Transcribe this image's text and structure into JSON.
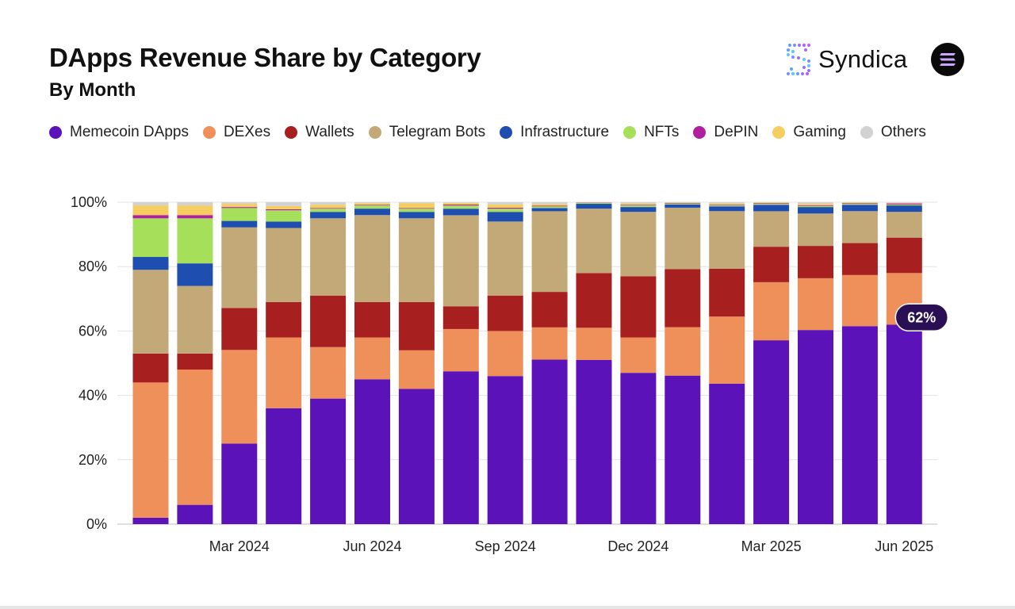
{
  "header": {
    "title": "DApps Revenue Share by Category",
    "subtitle": "By Month"
  },
  "brand": {
    "name": "Syndica",
    "logo_icon": "syndica-dots-icon",
    "partner_icon": "solana-logo-icon"
  },
  "chart_data": {
    "type": "bar",
    "stacked": true,
    "title": "DApps Revenue Share by Category",
    "subtitle": "By Month",
    "xlabel": "",
    "ylabel": "",
    "ylim": [
      0,
      100
    ],
    "yticks": [
      "0%",
      "20%",
      "40%",
      "60%",
      "80%",
      "100%"
    ],
    "yticks_values": [
      0,
      20,
      40,
      60,
      80,
      100
    ],
    "grid": true,
    "legend_position": "top",
    "categories": [
      "Jan 2024",
      "Feb 2024",
      "Mar 2024",
      "Apr 2024",
      "May 2024",
      "Jun 2024",
      "Jul 2024",
      "Aug 2024",
      "Sep 2024",
      "Oct 2024",
      "Nov 2024",
      "Dec 2024",
      "Jan 2025",
      "Feb 2025",
      "Mar 2025",
      "Apr 2025",
      "May 2025",
      "Jun 2025"
    ],
    "x_tick_labels": [
      {
        "index": 2,
        "label": "Mar 2024"
      },
      {
        "index": 5,
        "label": "Jun 2024"
      },
      {
        "index": 8,
        "label": "Sep 2024"
      },
      {
        "index": 11,
        "label": "Dec 2024"
      },
      {
        "index": 14,
        "label": "Mar 2025"
      },
      {
        "index": 17,
        "label": "Jun 2025"
      }
    ],
    "series": [
      {
        "name": "Memecoin DApps",
        "color": "#5b12b8",
        "values": [
          2,
          6,
          25,
          36,
          39,
          45,
          42,
          47,
          46,
          51,
          51,
          47,
          46,
          44,
          57,
          60,
          62,
          62
        ]
      },
      {
        "name": "DEXes",
        "color": "#ef8f5a",
        "values": [
          42,
          42,
          29,
          22,
          16,
          13,
          12,
          13,
          14,
          10,
          10,
          11,
          15,
          21,
          18,
          16,
          16,
          16
        ]
      },
      {
        "name": "Wallets",
        "color": "#a7201f",
        "values": [
          9,
          5,
          13,
          11,
          16,
          11,
          15,
          7,
          11,
          11,
          17,
          19,
          18,
          15,
          11,
          10,
          10,
          11
        ]
      },
      {
        "name": "Telegram Bots",
        "color": "#c2a977",
        "values": [
          26,
          21,
          25,
          23,
          24,
          27,
          26,
          28,
          23,
          25,
          20,
          20,
          19,
          18,
          11,
          10,
          10,
          8
        ]
      },
      {
        "name": "Infrastructure",
        "color": "#1e4fb0",
        "values": [
          4,
          7,
          2,
          2,
          2,
          2,
          2,
          2,
          3,
          1,
          1.5,
          1.5,
          1,
          1.5,
          2,
          2,
          2,
          2
        ]
      },
      {
        "name": "NFTs",
        "color": "#a6e05a",
        "values": [
          12,
          14,
          4,
          3.5,
          1,
          1,
          1,
          1,
          1,
          0.5,
          0.3,
          0.5,
          0.3,
          0.3,
          0.3,
          0.3,
          0.3,
          0.3
        ]
      },
      {
        "name": "DePIN",
        "color": "#b21f9e",
        "values": [
          1,
          1,
          0.3,
          0.3,
          0.2,
          0.2,
          0.2,
          0.3,
          0.3,
          0.2,
          0.1,
          0.2,
          0.2,
          0.2,
          0.2,
          0.2,
          0.2,
          0.3
        ]
      },
      {
        "name": "Gaming",
        "color": "#f6cd60",
        "values": [
          3,
          3,
          1,
          1,
          1,
          0.5,
          1.5,
          0.5,
          1,
          0.5,
          0.1,
          0.3,
          0.1,
          0.3,
          0.2,
          0.5,
          0.2,
          0.2
        ]
      },
      {
        "name": "Others",
        "color": "#d2d2d2",
        "values": [
          1,
          1,
          0.5,
          1.2,
          0.8,
          0.3,
          0.3,
          0.2,
          0.7,
          0.6,
          0,
          0.5,
          0.1,
          0.5,
          0.1,
          0.5,
          0.1,
          0.2
        ]
      }
    ],
    "annotations": [
      {
        "category": "Jun 2025",
        "series": "Memecoin DApps",
        "text": "62%"
      }
    ]
  }
}
